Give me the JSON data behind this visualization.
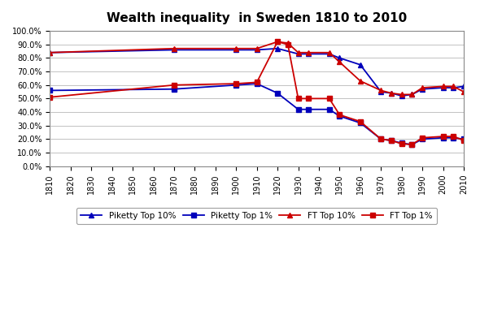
{
  "title": "Wealth inequality  in Sweden 1810 to 2010",
  "piketty_top10_years": [
    1810,
    1870,
    1900,
    1910,
    1920,
    1930,
    1935,
    1945,
    1950,
    1960,
    1970,
    1975,
    1980,
    1985,
    1990,
    2000,
    2005,
    2010
  ],
  "piketty_top10_values": [
    0.84,
    0.86,
    0.86,
    0.86,
    0.87,
    0.83,
    0.83,
    0.83,
    0.8,
    0.75,
    0.55,
    0.54,
    0.52,
    0.53,
    0.57,
    0.58,
    0.58,
    0.59
  ],
  "piketty_top1_years": [
    1810,
    1870,
    1900,
    1910,
    1920,
    1930,
    1935,
    1945,
    1950,
    1960,
    1970,
    1975,
    1980,
    1985,
    1990,
    2000,
    2005,
    2010
  ],
  "piketty_top1_values": [
    0.56,
    0.57,
    0.6,
    0.61,
    0.54,
    0.42,
    0.42,
    0.42,
    0.37,
    0.32,
    0.2,
    0.19,
    0.17,
    0.16,
    0.2,
    0.21,
    0.21,
    0.2
  ],
  "ft_top10_years": [
    1810,
    1870,
    1900,
    1910,
    1920,
    1925,
    1930,
    1935,
    1945,
    1950,
    1960,
    1970,
    1975,
    1980,
    1985,
    1990,
    2000,
    2005,
    2010
  ],
  "ft_top10_values": [
    0.84,
    0.87,
    0.87,
    0.87,
    0.92,
    0.91,
    0.84,
    0.84,
    0.84,
    0.77,
    0.63,
    0.56,
    0.54,
    0.53,
    0.53,
    0.58,
    0.59,
    0.59,
    0.55
  ],
  "ft_top1_years": [
    1810,
    1870,
    1900,
    1910,
    1920,
    1925,
    1930,
    1935,
    1945,
    1950,
    1960,
    1970,
    1975,
    1980,
    1985,
    1990,
    2000,
    2005,
    2010
  ],
  "ft_top1_values": [
    0.51,
    0.6,
    0.61,
    0.62,
    0.92,
    0.9,
    0.5,
    0.5,
    0.5,
    0.38,
    0.33,
    0.2,
    0.19,
    0.165,
    0.16,
    0.21,
    0.22,
    0.22,
    0.19
  ],
  "xlim": [
    1810,
    2010
  ],
  "ylim": [
    0.0,
    1.0
  ],
  "yticks": [
    0.0,
    0.1,
    0.2,
    0.3,
    0.4,
    0.5,
    0.6,
    0.7,
    0.8,
    0.9,
    1.0
  ],
  "xticks": [
    1810,
    1820,
    1830,
    1840,
    1850,
    1860,
    1870,
    1880,
    1890,
    1900,
    1910,
    1920,
    1930,
    1940,
    1950,
    1960,
    1970,
    1980,
    1990,
    2000,
    2010
  ],
  "color_blue": "#0000BB",
  "color_red": "#CC0000",
  "bg_color": "#FFFFFF",
  "grid_color": "#AAAAAA",
  "legend_labels": [
    "Piketty Top 10%",
    "Piketty Top 1%",
    "FT Top 10%",
    "FT Top 1%"
  ]
}
